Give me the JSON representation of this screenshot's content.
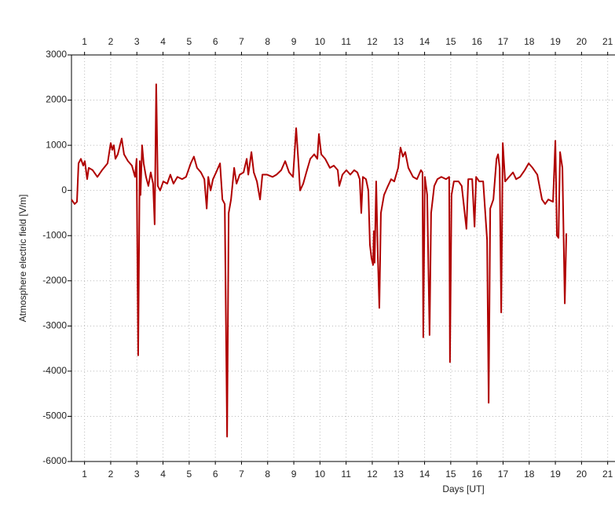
{
  "chart_data": {
    "type": "line",
    "x_label": "Days [UT]",
    "y_label": "Atmosphere electric field [V/m]",
    "xlim": [
      0,
      20.78
    ],
    "xticks": [
      {
        "value": 0.5,
        "label": "1"
      },
      {
        "value": 1.5,
        "label": "2"
      },
      {
        "value": 2.5,
        "label": "3"
      },
      {
        "value": 3.5,
        "label": "4"
      },
      {
        "value": 4.5,
        "label": "5"
      },
      {
        "value": 5.5,
        "label": "6"
      },
      {
        "value": 6.5,
        "label": "7"
      },
      {
        "value": 7.5,
        "label": "8"
      },
      {
        "value": 8.5,
        "label": "9"
      },
      {
        "value": 9.5,
        "label": "10"
      },
      {
        "value": 10.5,
        "label": "11"
      },
      {
        "value": 11.5,
        "label": "12"
      },
      {
        "value": 12.5,
        "label": "13"
      },
      {
        "value": 13.5,
        "label": "14"
      },
      {
        "value": 14.5,
        "label": "15"
      },
      {
        "value": 15.5,
        "label": "16"
      },
      {
        "value": 16.5,
        "label": "17"
      },
      {
        "value": 17.5,
        "label": "18"
      },
      {
        "value": 18.5,
        "label": "19"
      },
      {
        "value": 19.5,
        "label": "20"
      },
      {
        "value": 20.5,
        "label": "21"
      }
    ],
    "ylim": [
      -6000,
      3000
    ],
    "yticks": [
      3000,
      2000,
      1000,
      0,
      -1000,
      -2000,
      -3000,
      -4000,
      -5000,
      -6000
    ],
    "grid": true,
    "series": [
      {
        "name": "Atmosphere electric field",
        "color": "#b00000",
        "x": [
          0,
          0.12,
          0.21,
          0.27,
          0.36,
          0.45,
          0.51,
          0.6,
          0.66,
          0.81,
          0.99,
          1.17,
          1.38,
          1.5,
          1.56,
          1.62,
          1.68,
          1.77,
          1.92,
          2.01,
          2.16,
          2.31,
          2.43,
          2.49,
          2.55,
          2.61,
          2.64,
          2.7,
          2.76,
          2.85,
          2.94,
          3.03,
          3.12,
          3.18,
          3.24,
          3.3,
          3.39,
          3.51,
          3.66,
          3.78,
          3.9,
          4.05,
          4.23,
          4.38,
          4.56,
          4.68,
          4.8,
          4.95,
          5.08,
          5.17,
          5.23,
          5.32,
          5.41,
          5.53,
          5.68,
          5.77,
          5.86,
          5.95,
          6.01,
          6.1,
          6.22,
          6.31,
          6.43,
          6.58,
          6.7,
          6.76,
          6.88,
          6.97,
          7.09,
          7.21,
          7.3,
          7.48,
          7.69,
          7.84,
          8.02,
          8.17,
          8.32,
          8.47,
          8.59,
          8.68,
          8.74,
          8.86,
          8.98,
          9.13,
          9.28,
          9.4,
          9.46,
          9.55,
          9.7,
          9.88,
          10.03,
          10.18,
          10.24,
          10.36,
          10.51,
          10.66,
          10.81,
          10.93,
          11.02,
          11.08,
          11.14,
          11.26,
          11.35,
          11.41,
          11.47,
          11.53,
          11.56,
          11.59,
          11.65,
          11.71,
          11.77,
          11.83,
          11.95,
          12.1,
          12.22,
          12.34,
          12.49,
          12.58,
          12.67,
          12.76,
          12.88,
          13.06,
          13.21,
          13.36,
          13.42,
          13.45,
          13.51,
          13.6,
          13.69,
          13.75,
          13.87,
          13.99,
          14.14,
          14.32,
          14.44,
          14.47,
          14.53,
          14.62,
          14.8,
          14.92,
          15.1,
          15.17,
          15.32,
          15.41,
          15.47,
          15.59,
          15.74,
          15.89,
          15.95,
          16.01,
          16.13,
          16.25,
          16.31,
          16.37,
          16.43,
          16.49,
          16.58,
          16.73,
          16.88,
          17,
          17.15,
          17.33,
          17.48,
          17.63,
          17.81,
          17.99,
          18.11,
          18.23,
          18.41,
          18.5,
          18.56,
          18.62,
          18.68,
          18.77,
          18.86,
          18.92
        ],
        "values": [
          -200,
          -300,
          -250,
          600,
          700,
          550,
          650,
          250,
          500,
          450,
          300,
          450,
          600,
          1050,
          900,
          1000,
          700,
          800,
          1150,
          800,
          650,
          550,
          300,
          700,
          -3650,
          650,
          -100,
          1000,
          600,
          300,
          100,
          400,
          150,
          -750,
          2350,
          100,
          0,
          200,
          150,
          350,
          150,
          300,
          250,
          300,
          600,
          750,
          500,
          400,
          250,
          -400,
          300,
          0,
          250,
          400,
          600,
          -200,
          -300,
          -5450,
          -500,
          -200,
          500,
          150,
          350,
          400,
          700,
          350,
          850,
          400,
          200,
          -200,
          350,
          350,
          300,
          350,
          450,
          650,
          400,
          300,
          1380,
          600,
          0,
          150,
          400,
          700,
          800,
          700,
          1250,
          800,
          700,
          500,
          550,
          450,
          100,
          350,
          450,
          350,
          450,
          400,
          250,
          -500,
          300,
          250,
          0,
          -1200,
          -1500,
          -1650,
          -900,
          -1600,
          200,
          -1400,
          -2600,
          -500,
          -100,
          100,
          250,
          200,
          500,
          950,
          750,
          850,
          500,
          300,
          250,
          450,
          400,
          -3250,
          300,
          -100,
          -3200,
          -500,
          100,
          250,
          300,
          250,
          300,
          -3800,
          -100,
          200,
          200,
          100,
          -850,
          250,
          250,
          -800,
          300,
          200,
          200,
          -1100,
          -4700,
          -400,
          -200,
          700,
          800,
          500,
          -2700,
          1050,
          200,
          300,
          400,
          250,
          300,
          450,
          600,
          500,
          350,
          -200,
          -300,
          -200,
          -250,
          1100,
          -1000,
          -1050,
          850,
          500,
          -2500,
          -950
        ]
      }
    ]
  }
}
